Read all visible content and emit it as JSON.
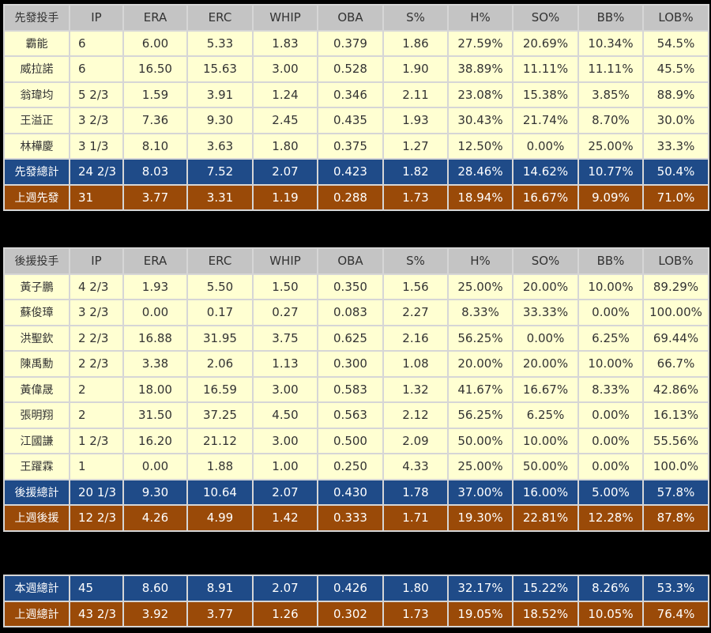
{
  "colors": {
    "header": "#c4c4c4",
    "row": "#ffffd2",
    "total": "#1f4b88",
    "last_week": "#9a4a08"
  },
  "columns": [
    "IP",
    "ERA",
    "ERC",
    "WHIP",
    "OBA",
    "S%",
    "H%",
    "SO%",
    "BB%",
    "LOB%"
  ],
  "starters": {
    "title": "先發投手",
    "rows": [
      [
        "霸能",
        "6",
        "6.00",
        "5.33",
        "1.83",
        "0.379",
        "1.86",
        "27.59%",
        "20.69%",
        "10.34%",
        "54.5%"
      ],
      [
        "威拉諾",
        "6",
        "16.50",
        "15.63",
        "3.00",
        "0.528",
        "1.90",
        "38.89%",
        "11.11%",
        "11.11%",
        "45.5%"
      ],
      [
        "翁瑋均",
        "5 2/3",
        "1.59",
        "3.91",
        "1.24",
        "0.346",
        "2.11",
        "23.08%",
        "15.38%",
        "3.85%",
        "88.9%"
      ],
      [
        "王溢正",
        "3 2/3",
        "7.36",
        "9.30",
        "2.45",
        "0.435",
        "1.93",
        "30.43%",
        "21.74%",
        "8.70%",
        "30.0%"
      ],
      [
        "林樺慶",
        "3 1/3",
        "8.10",
        "3.63",
        "1.80",
        "0.375",
        "1.27",
        "12.50%",
        "0.00%",
        "25.00%",
        "33.3%"
      ]
    ],
    "total": [
      "先發總計",
      "24 2/3",
      "8.03",
      "7.52",
      "2.07",
      "0.423",
      "1.82",
      "28.46%",
      "14.62%",
      "10.77%",
      "50.4%"
    ],
    "last_week": [
      "上週先發",
      "31",
      "3.77",
      "3.31",
      "1.19",
      "0.288",
      "1.73",
      "18.94%",
      "16.67%",
      "9.09%",
      "71.0%"
    ]
  },
  "relievers": {
    "title": "後援投手",
    "rows": [
      [
        "黃子鵬",
        "4 2/3",
        "1.93",
        "5.50",
        "1.50",
        "0.350",
        "1.56",
        "25.00%",
        "20.00%",
        "10.00%",
        "89.29%"
      ],
      [
        "蘇俊璋",
        "3 2/3",
        "0.00",
        "0.17",
        "0.27",
        "0.083",
        "2.27",
        "8.33%",
        "33.33%",
        "0.00%",
        "100.00%"
      ],
      [
        "洪聖欽",
        "2 2/3",
        "16.88",
        "31.95",
        "3.75",
        "0.625",
        "2.16",
        "56.25%",
        "0.00%",
        "6.25%",
        "69.44%"
      ],
      [
        "陳禹勳",
        "2 2/3",
        "3.38",
        "2.06",
        "1.13",
        "0.300",
        "1.08",
        "20.00%",
        "20.00%",
        "10.00%",
        "66.7%"
      ],
      [
        "黃偉晟",
        "2",
        "18.00",
        "16.59",
        "3.00",
        "0.583",
        "1.32",
        "41.67%",
        "16.67%",
        "8.33%",
        "42.86%"
      ],
      [
        "張明翔",
        "2",
        "31.50",
        "37.25",
        "4.50",
        "0.563",
        "2.12",
        "56.25%",
        "6.25%",
        "0.00%",
        "16.13%"
      ],
      [
        "江國謙",
        "1 2/3",
        "16.20",
        "21.12",
        "3.00",
        "0.500",
        "2.09",
        "50.00%",
        "10.00%",
        "0.00%",
        "55.56%"
      ],
      [
        "王躍霖",
        "1",
        "0.00",
        "1.88",
        "1.00",
        "0.250",
        "4.33",
        "25.00%",
        "50.00%",
        "0.00%",
        "100.0%"
      ]
    ],
    "total": [
      "後援總計",
      "20 1/3",
      "9.30",
      "10.64",
      "2.07",
      "0.430",
      "1.78",
      "37.00%",
      "16.00%",
      "5.00%",
      "57.8%"
    ],
    "last_week": [
      "上週後援",
      "12 2/3",
      "4.26",
      "4.99",
      "1.42",
      "0.333",
      "1.71",
      "19.30%",
      "22.81%",
      "12.28%",
      "87.8%"
    ]
  },
  "overall": {
    "total": [
      "本週總計",
      "45",
      "8.60",
      "8.91",
      "2.07",
      "0.426",
      "1.80",
      "32.17%",
      "15.22%",
      "8.26%",
      "53.3%"
    ],
    "last_week": [
      "上週總計",
      "43 2/3",
      "3.92",
      "3.77",
      "1.26",
      "0.302",
      "1.73",
      "19.05%",
      "18.52%",
      "10.05%",
      "76.4%"
    ]
  }
}
